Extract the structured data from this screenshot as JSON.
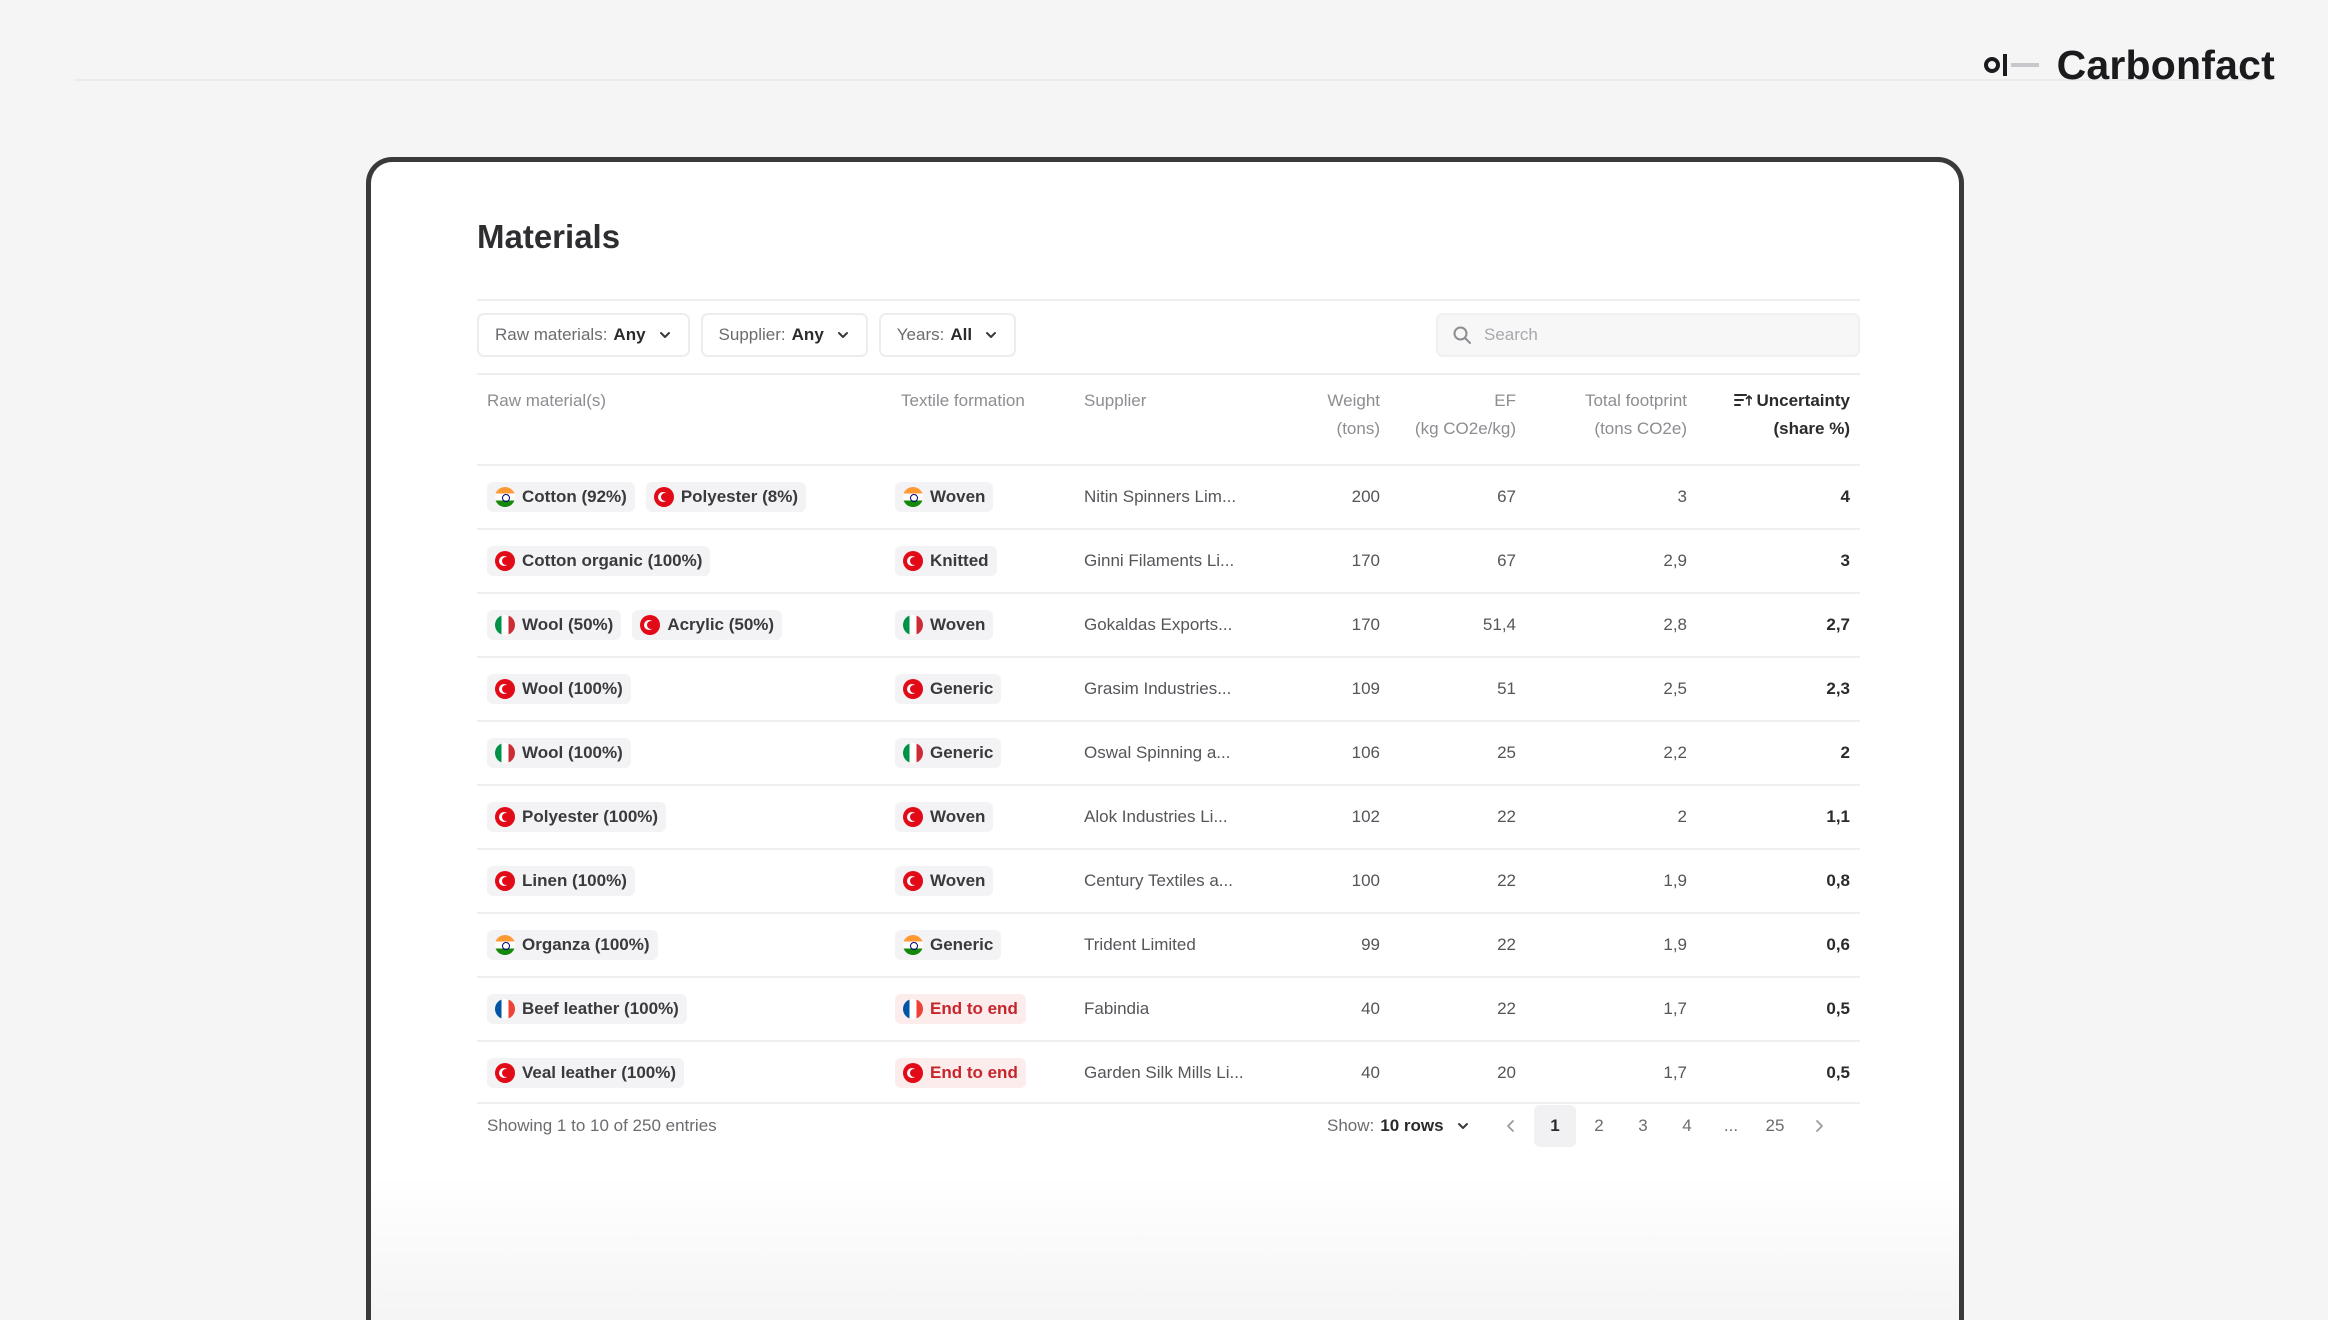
{
  "brand": {
    "name": "Carbonfact"
  },
  "page": {
    "title": "Materials"
  },
  "filters": [
    {
      "label": "Raw materials:",
      "value": "Any"
    },
    {
      "label": "Supplier:",
      "value": "Any"
    },
    {
      "label": "Years:",
      "value": "All"
    }
  ],
  "search": {
    "placeholder": "Search",
    "value": ""
  },
  "columns": {
    "raw_materials": "Raw material(s)",
    "textile_formation": "Textile formation",
    "supplier": "Supplier",
    "weight": [
      "Weight",
      "(tons)"
    ],
    "ef": [
      "EF",
      "(kg CO2e/kg)"
    ],
    "total_footprint": [
      "Total footprint",
      "(tons CO2e)"
    ],
    "uncertainty": [
      "Uncertainty",
      "(share %)"
    ]
  },
  "rows": [
    {
      "materials": [
        {
          "label": "Cotton (92%)",
          "flag": "in"
        },
        {
          "label": "Polyester (8%)",
          "flag": "tr"
        }
      ],
      "formation": {
        "label": "Woven",
        "flag": "in",
        "style": "grey"
      },
      "supplier": "Nitin Spinners Lim...",
      "weight": "200",
      "ef": "67",
      "footprint": "3",
      "uncertainty": "4"
    },
    {
      "materials": [
        {
          "label": "Cotton organic (100%)",
          "flag": "tr"
        }
      ],
      "formation": {
        "label": "Knitted",
        "flag": "tr",
        "style": "grey"
      },
      "supplier": "Ginni Filaments Li...",
      "weight": "170",
      "ef": "67",
      "footprint": "2,9",
      "uncertainty": "3"
    },
    {
      "materials": [
        {
          "label": "Wool (50%)",
          "flag": "it"
        },
        {
          "label": "Acrylic (50%)",
          "flag": "tr"
        }
      ],
      "formation": {
        "label": "Woven",
        "flag": "it",
        "style": "grey"
      },
      "supplier": "Gokaldas Exports...",
      "weight": "170",
      "ef": "51,4",
      "footprint": "2,8",
      "uncertainty": "2,7"
    },
    {
      "materials": [
        {
          "label": "Wool (100%)",
          "flag": "tr"
        }
      ],
      "formation": {
        "label": "Generic",
        "flag": "tr",
        "style": "grey"
      },
      "supplier": "Grasim Industries...",
      "weight": "109",
      "ef": "51",
      "footprint": "2,5",
      "uncertainty": "2,3"
    },
    {
      "materials": [
        {
          "label": "Wool (100%)",
          "flag": "it"
        }
      ],
      "formation": {
        "label": "Generic",
        "flag": "it",
        "style": "grey"
      },
      "supplier": "Oswal Spinning a...",
      "weight": "106",
      "ef": "25",
      "footprint": "2,2",
      "uncertainty": "2"
    },
    {
      "materials": [
        {
          "label": "Polyester (100%)",
          "flag": "tr"
        }
      ],
      "formation": {
        "label": "Woven",
        "flag": "tr",
        "style": "grey"
      },
      "supplier": "Alok Industries Li...",
      "weight": "102",
      "ef": "22",
      "footprint": "2",
      "uncertainty": "1,1"
    },
    {
      "materials": [
        {
          "label": "Linen (100%)",
          "flag": "tr"
        }
      ],
      "formation": {
        "label": "Woven",
        "flag": "tr",
        "style": "grey"
      },
      "supplier": "Century Textiles a...",
      "weight": "100",
      "ef": "22",
      "footprint": "1,9",
      "uncertainty": "0,8"
    },
    {
      "materials": [
        {
          "label": "Organza (100%)",
          "flag": "in"
        }
      ],
      "formation": {
        "label": "Generic",
        "flag": "in",
        "style": "grey"
      },
      "supplier": "Trident Limited",
      "weight": "99",
      "ef": "22",
      "footprint": "1,9",
      "uncertainty": "0,6"
    },
    {
      "materials": [
        {
          "label": "Beef leather (100%)",
          "flag": "fr"
        }
      ],
      "formation": {
        "label": "End to end",
        "flag": "fr",
        "style": "red"
      },
      "supplier": "Fabindia",
      "weight": "40",
      "ef": "22",
      "footprint": "1,7",
      "uncertainty": "0,5"
    },
    {
      "materials": [
        {
          "label": "Veal leather (100%)",
          "flag": "tr"
        }
      ],
      "formation": {
        "label": "End to end",
        "flag": "tr",
        "style": "red"
      },
      "supplier": "Garden Silk Mills Li...",
      "weight": "40",
      "ef": "20",
      "footprint": "1,7",
      "uncertainty": "0,5"
    }
  ],
  "footer": {
    "entries_text": "Showing 1 to 10 of 250 entries",
    "show_label": "Show:",
    "show_value": "10 rows",
    "pages": [
      "1",
      "2",
      "3",
      "4",
      "...",
      "25"
    ],
    "current_page": "1"
  },
  "colors": {
    "accent_red": "#c5252b",
    "chip_red_bg": "#fdecec",
    "chip_grey_bg": "#f3f3f5",
    "frame": "#3a3a3d"
  },
  "icons": {
    "filter_chevron": "chevron-down-icon",
    "search": "search-icon",
    "sort": "sort-icon",
    "prev": "chevron-left-icon",
    "next": "chevron-right-icon"
  }
}
